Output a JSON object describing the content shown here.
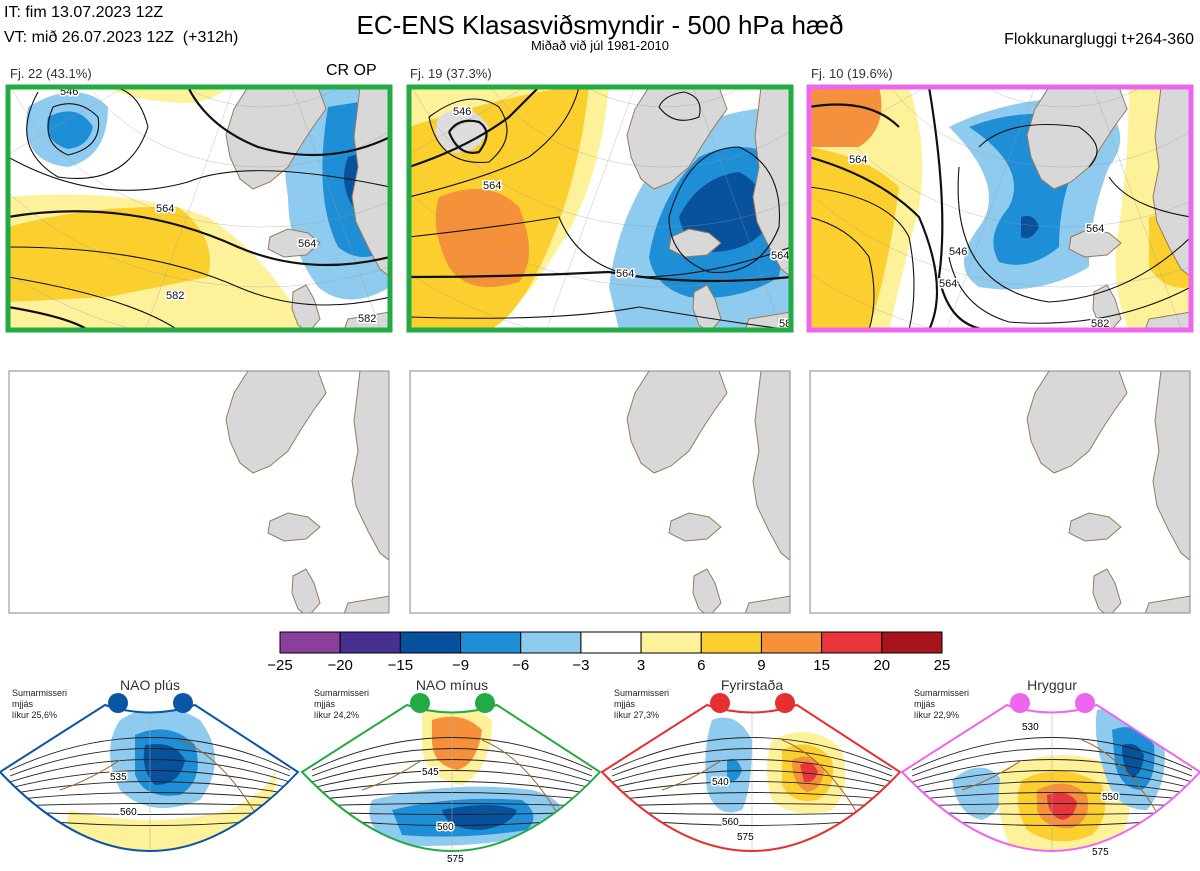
{
  "header": {
    "it": "IT: fim 13.07.2023 12Z",
    "vt": "VT: mið 26.07.2023 12Z",
    "vt_lead": "(+312h)",
    "title": "EC-ENS Klasasviðsmyndir - 500 hPa hæð",
    "subtitle": "Miðað við júl 1981-2010",
    "window": "Flokkunargluggi t+264-360"
  },
  "clusters": [
    {
      "label": "Fj. 22 (43.1%)",
      "members": 22,
      "percent": 43.1,
      "border": "#22aa44",
      "tag": "CR OP",
      "contour_labels": [
        "546",
        "564",
        "564",
        "582",
        "582"
      ]
    },
    {
      "label": "Fj. 19 (37.3%)",
      "members": 19,
      "percent": 37.3,
      "border": "#22aa44",
      "tag": "",
      "contour_labels": [
        "546",
        "564",
        "564",
        "564",
        "582"
      ]
    },
    {
      "label": "Fj. 10 (19.6%)",
      "members": 10,
      "percent": 19.6,
      "border": "#ee66ee",
      "tag": "",
      "contour_labels": [
        "564",
        "546",
        "564",
        "564",
        "582"
      ]
    }
  ],
  "colorbar": {
    "ticks": [
      "−25",
      "−20",
      "−15",
      "−9",
      "−6",
      "−3",
      "3",
      "6",
      "9",
      "15",
      "20",
      "25"
    ],
    "colors": [
      "#8a3f9a",
      "#47308f",
      "#08519c",
      "#1e8fd6",
      "#8fcbee",
      "#ffffff",
      "#fdf199",
      "#fbcf2e",
      "#f4913a",
      "#e8363c",
      "#a8141c"
    ]
  },
  "regimes": [
    {
      "name": "NAO plús",
      "color": "#0b55a5",
      "season": "Sumarmisseri",
      "state": "mjjás",
      "prob": "líkur 25,6%",
      "contours": [
        "535",
        "560"
      ]
    },
    {
      "name": "NAO mínus",
      "color": "#22aa44",
      "season": "Sumarmisseri",
      "state": "mjjás",
      "prob": "líkur 24,2%",
      "contours": [
        "545",
        "560",
        "575"
      ]
    },
    {
      "name": "Fyrirstaða",
      "color": "#e53030",
      "season": "Sumarmisseri",
      "state": "mjjás",
      "prob": "líkur 27,3%",
      "contours": [
        "540",
        "560",
        "575"
      ]
    },
    {
      "name": "Hryggur",
      "color": "#ee66ee",
      "season": "Sumarmisseri",
      "state": "mjjás",
      "prob": "líkur 22,9%",
      "contours": [
        "530",
        "550",
        "575"
      ]
    }
  ],
  "chart_data": {
    "type": "heatmap",
    "title": "EC-ENS Klasasviðsmyndir - 500 hPa hæð",
    "subtitle": "Miðað við júl 1981-2010",
    "variable": "500 hPa height anomaly (dam)",
    "colorbar_levels": [
      -25,
      -20,
      -15,
      -9,
      -6,
      -3,
      3,
      6,
      9,
      15,
      20,
      25
    ],
    "clusters": [
      {
        "name": "Fj. 22",
        "members": 22,
        "percent": 43.1,
        "regime": "NAO mínus"
      },
      {
        "name": "Fj. 19",
        "members": 19,
        "percent": 37.3,
        "regime": "NAO mínus"
      },
      {
        "name": "Fj. 10",
        "members": 10,
        "percent": 19.6,
        "regime": "Hryggur"
      }
    ],
    "regime_probabilities": [
      {
        "regime": "NAO plús",
        "percent": 25.6
      },
      {
        "regime": "NAO mínus",
        "percent": 24.2
      },
      {
        "regime": "Fyrirstaða",
        "percent": 27.3
      },
      {
        "regime": "Hryggur",
        "percent": 22.9
      }
    ]
  }
}
